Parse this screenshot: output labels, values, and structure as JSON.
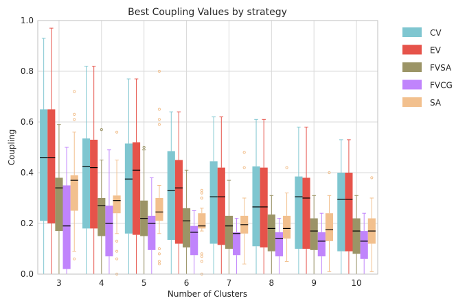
{
  "chart_data": {
    "type": "box",
    "title": "Best Coupling Values by strategy",
    "xlabel": "Number of Clusters",
    "ylabel": "Coupling",
    "ylim": [
      0,
      1.0
    ],
    "y_ticks": [
      "0.0",
      "0.2",
      "0.4",
      "0.6",
      "0.8",
      "1.0"
    ],
    "categories": [
      "3",
      "4",
      "5",
      "6",
      "7",
      "8",
      "9",
      "10"
    ],
    "grid": true,
    "legend_position": "outside-top-right",
    "series": [
      {
        "name": "CV",
        "color": "#7fc6d0",
        "boxes": [
          {
            "whislo": 0.0,
            "q1": 0.21,
            "med": 0.46,
            "q3": 0.65,
            "whishi": 0.93,
            "fliers": []
          },
          {
            "whislo": 0.0,
            "q1": 0.18,
            "med": 0.425,
            "q3": 0.535,
            "whishi": 0.82,
            "fliers": []
          },
          {
            "whislo": 0.0,
            "q1": 0.16,
            "med": 0.375,
            "q3": 0.515,
            "whishi": 0.77,
            "fliers": []
          },
          {
            "whislo": 0.0,
            "q1": 0.135,
            "med": 0.33,
            "q3": 0.485,
            "whishi": 0.64,
            "fliers": []
          },
          {
            "whislo": 0.0,
            "q1": 0.12,
            "med": 0.305,
            "q3": 0.445,
            "whishi": 0.62,
            "fliers": []
          },
          {
            "whislo": 0.0,
            "q1": 0.11,
            "med": 0.265,
            "q3": 0.425,
            "whishi": 0.61,
            "fliers": []
          },
          {
            "whislo": 0.0,
            "q1": 0.1,
            "med": 0.305,
            "q3": 0.385,
            "whishi": 0.58,
            "fliers": []
          },
          {
            "whislo": 0.0,
            "q1": 0.09,
            "med": 0.295,
            "q3": 0.4,
            "whishi": 0.53,
            "fliers": []
          }
        ]
      },
      {
        "name": "EV",
        "color": "#e6534a",
        "boxes": [
          {
            "whislo": 0.0,
            "q1": 0.2,
            "med": 0.46,
            "q3": 0.65,
            "whishi": 0.97,
            "fliers": []
          },
          {
            "whislo": 0.0,
            "q1": 0.18,
            "med": 0.42,
            "q3": 0.53,
            "whishi": 0.82,
            "fliers": []
          },
          {
            "whislo": 0.0,
            "q1": 0.155,
            "med": 0.41,
            "q3": 0.52,
            "whishi": 0.77,
            "fliers": []
          },
          {
            "whislo": 0.0,
            "q1": 0.12,
            "med": 0.34,
            "q3": 0.45,
            "whishi": 0.64,
            "fliers": []
          },
          {
            "whislo": 0.0,
            "q1": 0.115,
            "med": 0.305,
            "q3": 0.42,
            "whishi": 0.62,
            "fliers": []
          },
          {
            "whislo": 0.0,
            "q1": 0.105,
            "med": 0.265,
            "q3": 0.42,
            "whishi": 0.61,
            "fliers": []
          },
          {
            "whislo": 0.0,
            "q1": 0.1,
            "med": 0.3,
            "q3": 0.38,
            "whishi": 0.58,
            "fliers": []
          },
          {
            "whislo": 0.0,
            "q1": 0.09,
            "med": 0.295,
            "q3": 0.4,
            "whishi": 0.53,
            "fliers": []
          }
        ]
      },
      {
        "name": "FVSA",
        "color": "#9b9466",
        "boxes": [
          {
            "whislo": 0.0,
            "q1": 0.17,
            "med": 0.34,
            "q3": 0.38,
            "whishi": 0.59,
            "fliers": []
          },
          {
            "whislo": 0.0,
            "q1": 0.15,
            "med": 0.27,
            "q3": 0.3,
            "whishi": 0.45,
            "fliers": [
              0.57
            ]
          },
          {
            "whislo": 0.0,
            "q1": 0.15,
            "med": 0.22,
            "q3": 0.29,
            "whishi": 0.49,
            "fliers": [
              0.5
            ]
          },
          {
            "whislo": 0.0,
            "q1": 0.105,
            "med": 0.21,
            "q3": 0.26,
            "whishi": 0.41,
            "fliers": []
          },
          {
            "whislo": 0.0,
            "q1": 0.1,
            "med": 0.19,
            "q3": 0.23,
            "whishi": 0.37,
            "fliers": []
          },
          {
            "whislo": 0.0,
            "q1": 0.09,
            "med": 0.18,
            "q3": 0.235,
            "whishi": 0.31,
            "fliers": []
          },
          {
            "whislo": 0.0,
            "q1": 0.095,
            "med": 0.17,
            "q3": 0.22,
            "whishi": 0.31,
            "fliers": []
          },
          {
            "whislo": 0.0,
            "q1": 0.08,
            "med": 0.17,
            "q3": 0.22,
            "whishi": 0.31,
            "fliers": []
          }
        ]
      },
      {
        "name": "FVCG",
        "color": "#c084fc",
        "boxes": [
          {
            "whislo": 0.0,
            "q1": 0.02,
            "med": 0.19,
            "q3": 0.35,
            "whishi": 0.5,
            "fliers": []
          },
          {
            "whislo": 0.0,
            "q1": 0.07,
            "med": 0.2,
            "q3": 0.27,
            "whishi": 0.49,
            "fliers": []
          },
          {
            "whislo": 0.0,
            "q1": 0.095,
            "med": 0.2,
            "q3": 0.23,
            "whishi": 0.38,
            "fliers": []
          },
          {
            "whislo": 0.0,
            "q1": 0.075,
            "med": 0.165,
            "q3": 0.19,
            "whishi": 0.25,
            "fliers": []
          },
          {
            "whislo": 0.0,
            "q1": 0.075,
            "med": 0.16,
            "q3": 0.165,
            "whishi": 0.22,
            "fliers": []
          },
          {
            "whislo": 0.0,
            "q1": 0.07,
            "med": 0.14,
            "q3": 0.165,
            "whishi": 0.22,
            "fliers": []
          },
          {
            "whislo": 0.0,
            "q1": 0.07,
            "med": 0.13,
            "q3": 0.165,
            "whishi": 0.24,
            "fliers": []
          },
          {
            "whislo": 0.0,
            "q1": 0.06,
            "med": 0.13,
            "q3": 0.17,
            "whishi": 0.24,
            "fliers": []
          }
        ]
      },
      {
        "name": "SA",
        "color": "#f2c08e",
        "boxes": [
          {
            "whislo": 0.09,
            "q1": 0.25,
            "med": 0.37,
            "q3": 0.39,
            "whishi": 0.56,
            "fliers": [
              0.72,
              0.63,
              0.61,
              0.06
            ]
          },
          {
            "whislo": 0.16,
            "q1": 0.24,
            "med": 0.29,
            "q3": 0.31,
            "whishi": 0.45,
            "fliers": [
              0.56,
              0.13,
              0.09,
              0.06,
              0.0
            ]
          },
          {
            "whislo": 0.16,
            "q1": 0.21,
            "med": 0.245,
            "q3": 0.3,
            "whishi": 0.35,
            "fliers": [
              0.8,
              0.65,
              0.61,
              0.59,
              0.1,
              0.08,
              0.05,
              0.04
            ]
          },
          {
            "whislo": 0.17,
            "q1": 0.18,
            "med": 0.19,
            "q3": 0.24,
            "whishi": 0.26,
            "fliers": [
              0.33,
              0.32,
              0.3,
              0.3,
              0.08,
              0.07,
              0.05,
              0.0
            ]
          },
          {
            "whislo": 0.04,
            "q1": 0.16,
            "med": 0.195,
            "q3": 0.23,
            "whishi": 0.3,
            "fliers": [
              0.48,
              0.42
            ]
          },
          {
            "whislo": 0.05,
            "q1": 0.14,
            "med": 0.18,
            "q3": 0.23,
            "whishi": 0.32,
            "fliers": [
              0.42
            ]
          },
          {
            "whislo": 0.01,
            "q1": 0.13,
            "med": 0.175,
            "q3": 0.24,
            "whishi": 0.31,
            "fliers": [
              0.4
            ]
          },
          {
            "whislo": 0.01,
            "q1": 0.12,
            "med": 0.17,
            "q3": 0.22,
            "whishi": 0.3,
            "fliers": [
              0.38
            ]
          }
        ]
      }
    ]
  }
}
